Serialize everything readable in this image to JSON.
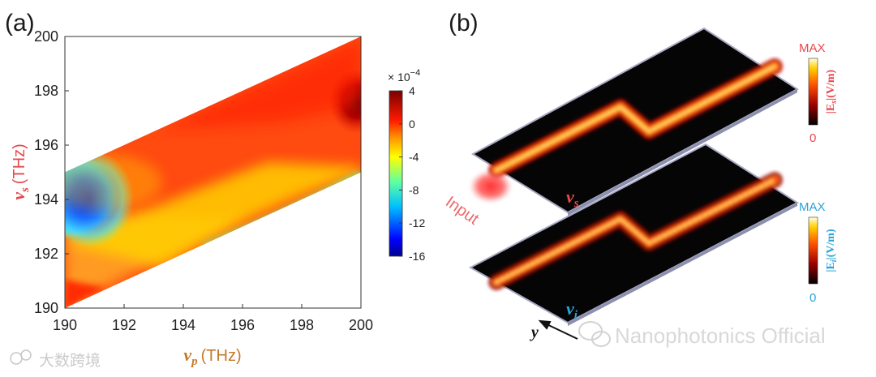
{
  "panel_a": {
    "label": "(a)",
    "chart_data": {
      "type": "heatmap",
      "title": "",
      "xlabel_symbol": "ν",
      "xlabel_sub": "p",
      "xlabel_unit": "(THz)",
      "ylabel_symbol": "ν",
      "ylabel_sub": "s",
      "ylabel_unit": "(THz)",
      "xlim": [
        190,
        200
      ],
      "ylim": [
        190,
        200
      ],
      "x_ticks": [
        "190",
        "192",
        "194",
        "196",
        "198",
        "200"
      ],
      "y_ticks": [
        "190",
        "192",
        "194",
        "196",
        "198",
        "200"
      ],
      "region_vertices": [
        [
          190,
          190
        ],
        [
          200,
          195
        ],
        [
          200,
          200
        ],
        [
          190,
          195
        ]
      ],
      "colorbar": {
        "multiplier": "× 10",
        "exponent": "−4",
        "range": [
          -16,
          4
        ],
        "ticks": [
          "4",
          "0",
          "-4",
          "-8",
          "-12",
          "-16"
        ],
        "tick_values": [
          4,
          0,
          -4,
          -8,
          -12,
          -16
        ]
      },
      "colorbar_colors": [
        "#00008f",
        "#0000ff",
        "#0080ff",
        "#00ffff",
        "#80ff80",
        "#ffff00",
        "#ff8000",
        "#ff0000",
        "#800000"
      ]
    }
  },
  "panel_b": {
    "label": "(b)",
    "input_label": "Input",
    "signal_symbol": "ν",
    "signal_sub": "s",
    "idler_symbol": "ν",
    "idler_sub": "i",
    "axis_y_label": "y",
    "top_colorbar": {
      "max": "MAX",
      "min": "0",
      "label": "|E",
      "label_sub": "s",
      "label_unit": "|(V/m)"
    },
    "bottom_colorbar": {
      "max": "MAX",
      "min": "0",
      "label": "|E",
      "label_sub": "i",
      "label_unit": "|(V/m)"
    }
  },
  "watermarks": {
    "left": "大数跨境",
    "right": "Nanophotonics Official"
  },
  "colors": {
    "signal": "#e8474b",
    "pump": "#c57a2a",
    "idler": "#29a3d8"
  }
}
